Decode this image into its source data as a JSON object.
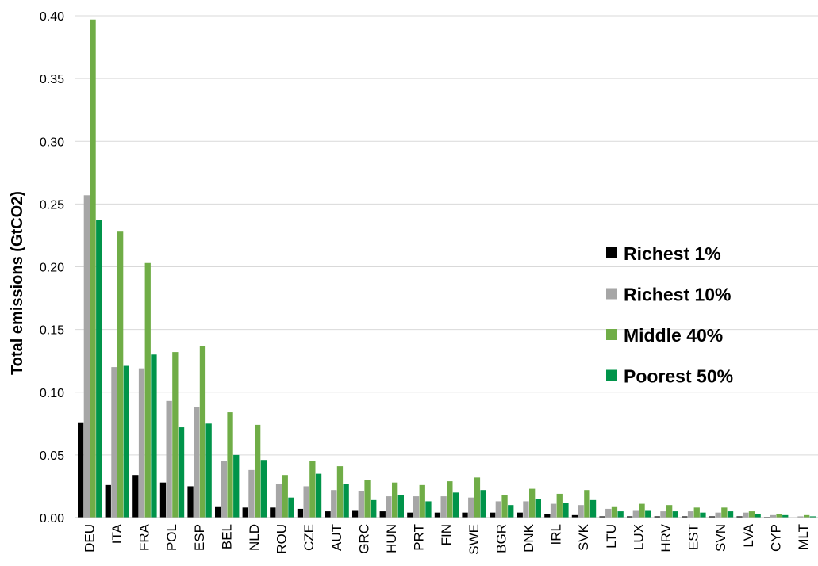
{
  "chart_data": {
    "type": "bar",
    "ylabel": "Total emissions  (GtCO2)",
    "xlabel": "",
    "ylim": [
      0,
      0.4
    ],
    "yticks": [
      "0.00",
      "0.05",
      "0.10",
      "0.15",
      "0.20",
      "0.25",
      "0.30",
      "0.35",
      "0.40"
    ],
    "grid": true,
    "legend_position": "right",
    "categories": [
      "DEU",
      "ITA",
      "FRA",
      "POL",
      "ESP",
      "BEL",
      "NLD",
      "ROU",
      "CZE",
      "AUT",
      "GRC",
      "HUN",
      "PRT",
      "FIN",
      "SWE",
      "BGR",
      "DNK",
      "IRL",
      "SVK",
      "LTU",
      "LUX",
      "HRV",
      "EST",
      "SVN",
      "LVA",
      "CYP",
      "MLT"
    ],
    "series": [
      {
        "name": "Richest 1%",
        "color": "#000000",
        "values": [
          0.076,
          0.026,
          0.034,
          0.028,
          0.025,
          0.009,
          0.008,
          0.008,
          0.007,
          0.005,
          0.006,
          0.005,
          0.004,
          0.004,
          0.004,
          0.004,
          0.004,
          0.003,
          0.002,
          0.001,
          0.001,
          0.001,
          0.001,
          0.001,
          0.001,
          0.0005,
          0.0003
        ]
      },
      {
        "name": "Richest 10%",
        "color": "#a6a6a6",
        "values": [
          0.257,
          0.12,
          0.119,
          0.093,
          0.088,
          0.045,
          0.038,
          0.027,
          0.025,
          0.022,
          0.021,
          0.017,
          0.017,
          0.017,
          0.016,
          0.013,
          0.013,
          0.011,
          0.01,
          0.007,
          0.006,
          0.005,
          0.005,
          0.004,
          0.004,
          0.002,
          0.001
        ]
      },
      {
        "name": "Middle 40%",
        "color": "#70ad47",
        "values": [
          0.397,
          0.228,
          0.203,
          0.132,
          0.137,
          0.084,
          0.074,
          0.034,
          0.045,
          0.041,
          0.03,
          0.028,
          0.026,
          0.029,
          0.032,
          0.018,
          0.023,
          0.019,
          0.022,
          0.009,
          0.011,
          0.01,
          0.008,
          0.008,
          0.005,
          0.003,
          0.002
        ]
      },
      {
        "name": "Poorest 50%",
        "color": "#00944a",
        "values": [
          0.237,
          0.121,
          0.13,
          0.072,
          0.075,
          0.05,
          0.046,
          0.016,
          0.035,
          0.027,
          0.014,
          0.018,
          0.013,
          0.02,
          0.022,
          0.01,
          0.015,
          0.012,
          0.014,
          0.005,
          0.006,
          0.005,
          0.004,
          0.005,
          0.003,
          0.002,
          0.001
        ]
      }
    ]
  }
}
